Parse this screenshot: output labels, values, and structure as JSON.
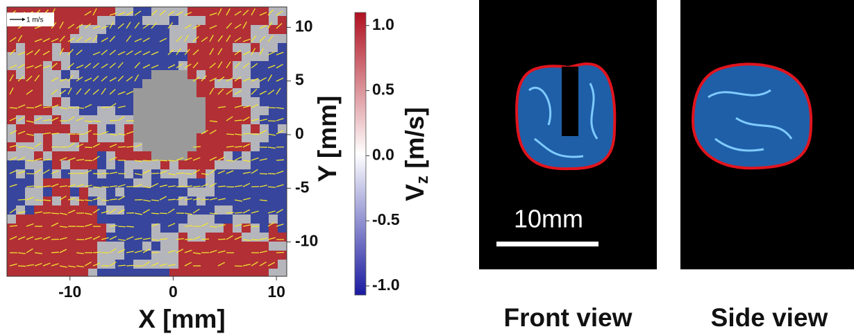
{
  "field_plot": {
    "x_label": "X [mm]",
    "y_label": "Y [mm]",
    "xlim": [
      -16.1,
      11.0
    ],
    "ylim": [
      -13.2,
      11.9
    ],
    "xticks": [
      -10,
      0,
      10
    ],
    "yticks": [
      -10,
      -5,
      0,
      5,
      10
    ],
    "scale_arrow_label": "1 m/s",
    "colorbar": {
      "label": "V",
      "label_sub": "z",
      "label_units": "[m/s]",
      "lim": [
        -1.07,
        1.1
      ],
      "ticks": [
        {
          "value": -1.0,
          "label": "-1.0"
        },
        {
          "value": -0.5,
          "label": "-0.5"
        },
        {
          "value": 0.0,
          "label": "0.0"
        },
        {
          "value": 0.5,
          "label": "0.5"
        },
        {
          "value": 1.0,
          "label": "1.0"
        }
      ],
      "colors": [
        "#1a1aa0",
        "#ffffff",
        "#b01020"
      ]
    }
  },
  "views": [
    {
      "label": "Front view"
    },
    {
      "label": "Side view"
    }
  ],
  "scale_bar_label": "10mm"
}
